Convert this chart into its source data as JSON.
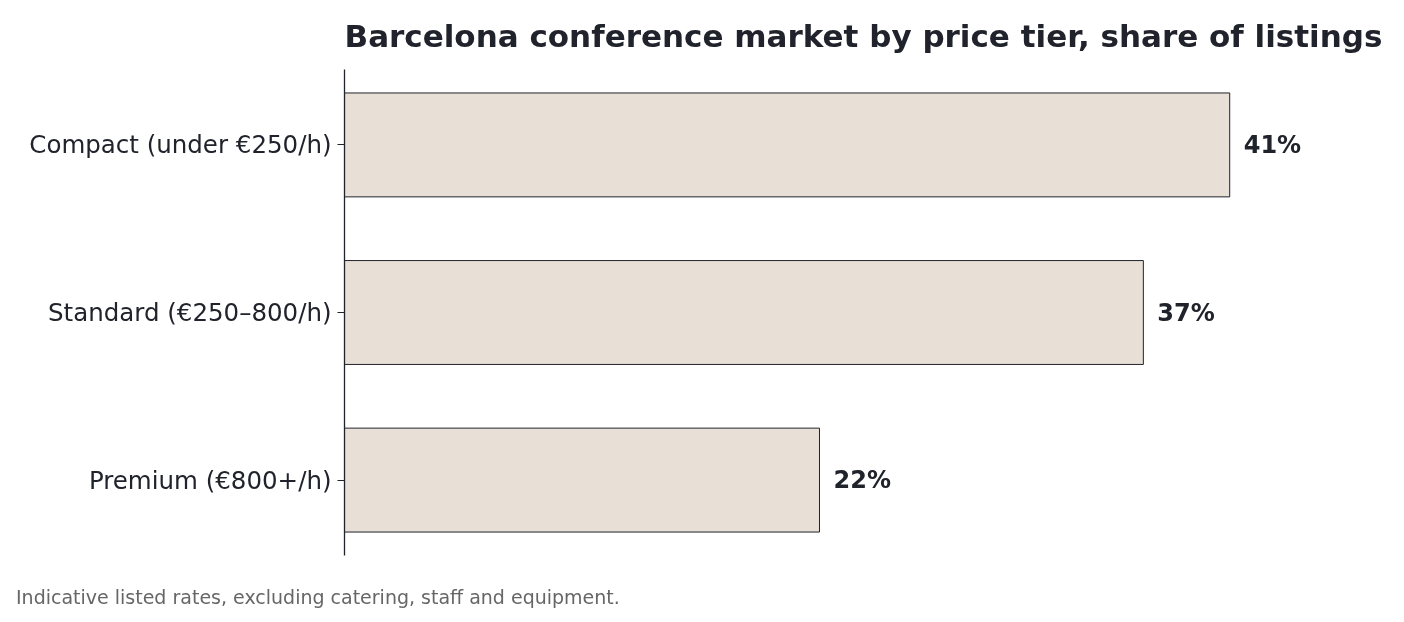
{
  "chart_data": {
    "type": "bar",
    "orientation": "horizontal",
    "title": "Barcelona conference market by price tier, share of listings",
    "categories": [
      "Compact (under €250/h)",
      "Standard (€250–800/h)",
      "Premium (€800+/h)"
    ],
    "values": [
      41,
      37,
      22
    ],
    "value_labels": [
      "41%",
      "37%",
      "22%"
    ],
    "color": "#e8dfd6",
    "grid": false,
    "tick_labels": "y",
    "annotations": [
      "Indicative listed rates, excluding catering, staff and equipment."
    ]
  }
}
